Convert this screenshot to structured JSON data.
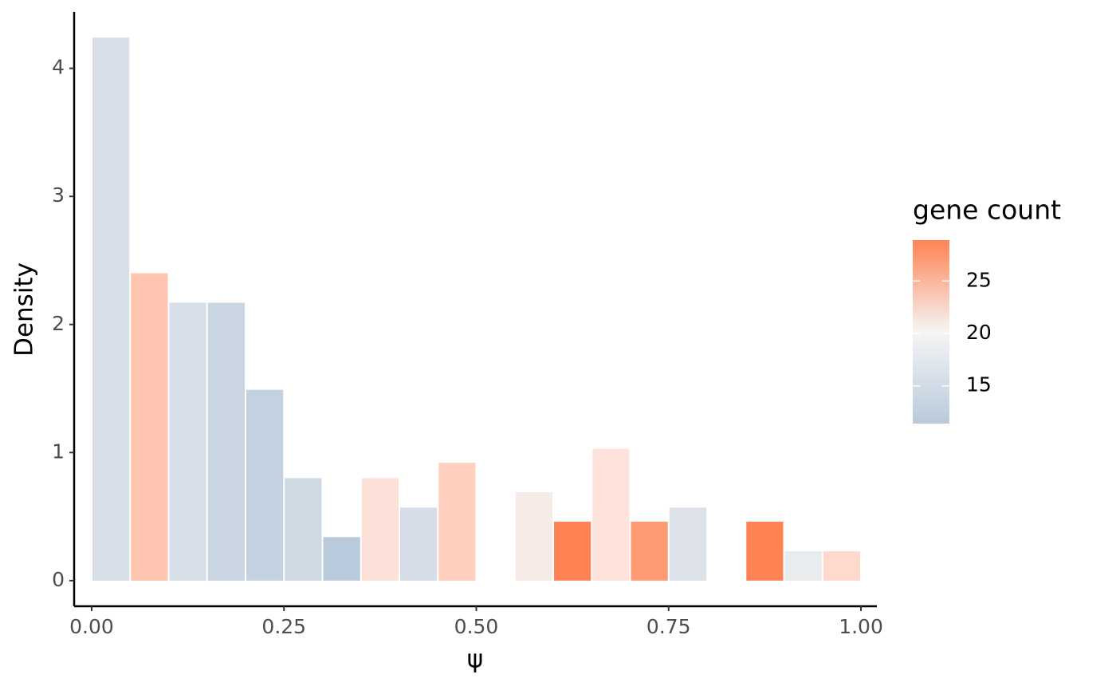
{
  "chart_data": {
    "type": "histogram",
    "x_label": "ψ",
    "y_label": "Density",
    "bins": [
      0,
      0.05,
      0.1,
      0.15,
      0.2,
      0.25,
      0.3,
      0.35,
      0.4,
      0.45,
      0.5,
      0.55,
      0.6,
      0.65,
      0.7,
      0.75,
      0.8,
      0.85,
      0.9,
      0.95,
      1.0
    ],
    "values": [
      4.24,
      2.4,
      2.17,
      2.17,
      1.49,
      0.8,
      0.34,
      0.8,
      0.57,
      0.92,
      0,
      0.69,
      0.46,
      1.03,
      0.46,
      0.57,
      0,
      0.46,
      0.23,
      0.23
    ],
    "colors": [
      "#d9dfe8",
      "#ffc5b0",
      "#d9dfe8",
      "#cbd6e3",
      "#c4d1e0",
      "#cfd9e4",
      "#b9cadc",
      "#fde1d8",
      "#d6dce8",
      "#ffd0bf",
      null,
      "#f6ebe7",
      "#ff8352",
      "#fde3db",
      "#ff9a72",
      "#dce1ea",
      null,
      "#ff8352",
      "#e9ecef",
      "#ffd9cc"
    ],
    "xlim": [
      -0.0228,
      1.0207
    ],
    "ylim": [
      -0.2,
      4.44
    ],
    "xticks": [
      {
        "value": 0,
        "label": "0.00"
      },
      {
        "value": 0.25,
        "label": "0.25"
      },
      {
        "value": 0.5,
        "label": "0.50"
      },
      {
        "value": 0.75,
        "label": "0.75"
      },
      {
        "value": 1,
        "label": "1.00"
      }
    ],
    "yticks": [
      0,
      1,
      2,
      3,
      4
    ],
    "colorbar": {
      "title": "gene count",
      "lim": [
        11.4,
        28.9
      ],
      "ticks": [
        15,
        20,
        25
      ],
      "colors": [
        "#b9cadc",
        "#f5f5f5",
        "#ff8352"
      ]
    }
  }
}
